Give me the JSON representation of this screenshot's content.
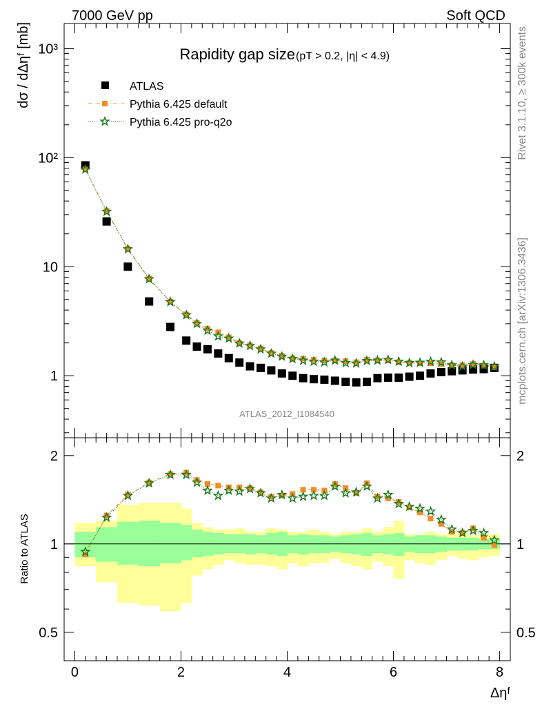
{
  "header": {
    "left": "7000 GeV pp",
    "right": "Soft QCD"
  },
  "side_labels": {
    "rivet": "Rivet 3.1.10, ≥ 300k events",
    "mcplots": "mcplots.cern.ch [arXiv:1306.3436]"
  },
  "watermark": "ATLAS_2012_I1084540",
  "chart_data": [
    {
      "type": "scatter",
      "title": "Rapidity gap size",
      "subtitle": "(pT > 0.2, |η| < 4.9)",
      "ylabel": "dσ / dΔηᶠ [mb]",
      "xlabel": "Δηᶠ",
      "yscale": "log",
      "xlim": [
        -0.2,
        8.2
      ],
      "ylim": [
        0.27,
        1700
      ],
      "y_ticks": [
        {
          "value": 1000,
          "label": "10³"
        },
        {
          "value": 100,
          "label": "10²"
        },
        {
          "value": 10,
          "label": "10"
        },
        {
          "value": 1,
          "label": "1"
        }
      ],
      "x_ticks": [
        0,
        2,
        4,
        6,
        8
      ],
      "legend_position": "top-left",
      "x": [
        0.2,
        0.6,
        1.0,
        1.4,
        1.8,
        2.1,
        2.3,
        2.5,
        2.7,
        2.9,
        3.1,
        3.3,
        3.5,
        3.7,
        3.9,
        4.1,
        4.3,
        4.5,
        4.7,
        4.9,
        5.1,
        5.3,
        5.5,
        5.7,
        5.9,
        6.1,
        6.3,
        6.5,
        6.7,
        6.9,
        7.1,
        7.3,
        7.5,
        7.7,
        7.9
      ],
      "series": [
        {
          "name": "ATLAS",
          "color": "#000000",
          "marker": "square",
          "values": [
            85,
            26,
            10,
            4.8,
            2.8,
            2.1,
            1.85,
            1.75,
            1.6,
            1.45,
            1.32,
            1.22,
            1.18,
            1.12,
            1.05,
            1.0,
            0.95,
            0.93,
            0.92,
            0.9,
            0.88,
            0.87,
            0.88,
            0.95,
            0.96,
            0.96,
            0.98,
            1.0,
            1.05,
            1.08,
            1.1,
            1.12,
            1.14,
            1.15,
            1.18
          ]
        },
        {
          "name": "Pythia 6.425 default",
          "color": "#f28c28",
          "marker": "square",
          "values": [
            78,
            32.5,
            14.6,
            7.8,
            4.8,
            3.65,
            3.05,
            2.7,
            2.5,
            2.25,
            2.0,
            1.9,
            1.78,
            1.62,
            1.52,
            1.45,
            1.43,
            1.4,
            1.38,
            1.38,
            1.36,
            1.33,
            1.4,
            1.38,
            1.38,
            1.33,
            1.32,
            1.3,
            1.3,
            1.28,
            1.25,
            1.25,
            1.28,
            1.24,
            1.2
          ]
        },
        {
          "name": "Pythia 6.425 pro-q2o",
          "color": "#1f7a1f",
          "marker": "star",
          "values": [
            78,
            32,
            14.5,
            7.7,
            4.75,
            3.6,
            3.0,
            2.6,
            2.3,
            2.2,
            1.98,
            1.88,
            1.75,
            1.6,
            1.5,
            1.43,
            1.38,
            1.35,
            1.33,
            1.38,
            1.31,
            1.3,
            1.37,
            1.38,
            1.4,
            1.35,
            1.31,
            1.32,
            1.35,
            1.33,
            1.25,
            1.22,
            1.26,
            1.25,
            1.22
          ]
        }
      ]
    },
    {
      "type": "scatter",
      "ylabel": "Ratio to ATLAS",
      "xlabel": "Δηᶠ",
      "yscale": "log",
      "xlim": [
        -0.2,
        8.2
      ],
      "ylim": [
        0.4,
        2.3
      ],
      "y_ticks": [
        {
          "value": 2,
          "label": "2"
        },
        {
          "value": 1,
          "label": "1"
        },
        {
          "value": 0.5,
          "label": "0.5"
        }
      ],
      "x_ticks": [
        0,
        2,
        4,
        6,
        8
      ],
      "reference_line": 1,
      "x": [
        0.2,
        0.6,
        1.0,
        1.4,
        1.8,
        2.1,
        2.3,
        2.5,
        2.7,
        2.9,
        3.1,
        3.3,
        3.5,
        3.7,
        3.9,
        4.1,
        4.3,
        4.5,
        4.7,
        4.9,
        5.1,
        5.3,
        5.5,
        5.7,
        5.9,
        6.1,
        6.3,
        6.5,
        6.7,
        6.9,
        7.1,
        7.3,
        7.5,
        7.7,
        7.9
      ],
      "series": [
        {
          "name": "Pythia 6.425 default",
          "color": "#f28c28",
          "marker": "square",
          "values": [
            0.92,
            1.25,
            1.47,
            1.62,
            1.73,
            1.75,
            1.65,
            1.6,
            1.58,
            1.56,
            1.56,
            1.55,
            1.5,
            1.45,
            1.46,
            1.48,
            1.53,
            1.53,
            1.52,
            1.6,
            1.55,
            1.49,
            1.61,
            1.45,
            1.43,
            1.39,
            1.33,
            1.28,
            1.22,
            1.17,
            1.1,
            1.09,
            1.13,
            1.05,
            0.99
          ]
        },
        {
          "name": "Pythia 6.425 pro-q2o",
          "color": "#1f7a1f",
          "marker": "star",
          "values": [
            0.94,
            1.23,
            1.46,
            1.61,
            1.72,
            1.72,
            1.62,
            1.52,
            1.46,
            1.52,
            1.51,
            1.54,
            1.49,
            1.43,
            1.47,
            1.43,
            1.45,
            1.46,
            1.46,
            1.57,
            1.49,
            1.5,
            1.57,
            1.43,
            1.47,
            1.37,
            1.34,
            1.32,
            1.29,
            1.21,
            1.12,
            1.09,
            1.11,
            1.09,
            1.03
          ]
        }
      ],
      "bands": {
        "x_edges": [
          0.0,
          0.4,
          0.8,
          1.2,
          1.6,
          2.0,
          2.2,
          2.4,
          2.6,
          2.8,
          3.0,
          3.2,
          3.4,
          3.6,
          3.8,
          4.0,
          4.2,
          4.4,
          4.6,
          4.8,
          5.0,
          5.2,
          5.4,
          5.6,
          5.8,
          6.0,
          6.2,
          6.4,
          6.6,
          6.8,
          7.0,
          7.2,
          7.4,
          7.6,
          7.8,
          8.0
        ],
        "outer_color": "#ffff99",
        "inner_color": "#99ff99",
        "outer_lo": [
          0.84,
          0.74,
          0.63,
          0.62,
          0.59,
          0.63,
          0.78,
          0.82,
          0.85,
          0.88,
          0.86,
          0.85,
          0.85,
          0.84,
          0.82,
          0.86,
          0.84,
          0.86,
          0.86,
          0.89,
          0.86,
          0.84,
          0.82,
          0.87,
          0.84,
          0.76,
          0.88,
          0.86,
          0.85,
          0.88,
          0.91,
          0.89,
          0.88,
          0.9,
          0.91
        ],
        "outer_hi": [
          1.18,
          1.2,
          1.36,
          1.38,
          1.38,
          1.32,
          1.18,
          1.14,
          1.12,
          1.12,
          1.13,
          1.1,
          1.1,
          1.13,
          1.12,
          1.1,
          1.1,
          1.12,
          1.1,
          1.08,
          1.1,
          1.1,
          1.13,
          1.1,
          1.14,
          1.2,
          1.08,
          1.08,
          1.1,
          1.08,
          1.08,
          1.09,
          1.07,
          1.08,
          1.08
        ],
        "inner_lo": [
          0.9,
          0.87,
          0.85,
          0.84,
          0.86,
          0.88,
          0.9,
          0.91,
          0.92,
          0.93,
          0.93,
          0.92,
          0.93,
          0.92,
          0.91,
          0.93,
          0.92,
          0.93,
          0.93,
          0.94,
          0.93,
          0.92,
          0.91,
          0.93,
          0.92,
          0.91,
          0.94,
          0.93,
          0.93,
          0.94,
          0.95,
          0.95,
          0.95,
          0.96,
          0.96
        ],
        "inner_hi": [
          1.1,
          1.14,
          1.19,
          1.2,
          1.18,
          1.16,
          1.12,
          1.1,
          1.09,
          1.08,
          1.08,
          1.08,
          1.07,
          1.09,
          1.1,
          1.07,
          1.08,
          1.07,
          1.07,
          1.06,
          1.07,
          1.08,
          1.09,
          1.07,
          1.08,
          1.09,
          1.06,
          1.07,
          1.07,
          1.06,
          1.05,
          1.05,
          1.05,
          1.04,
          1.04
        ]
      }
    }
  ]
}
